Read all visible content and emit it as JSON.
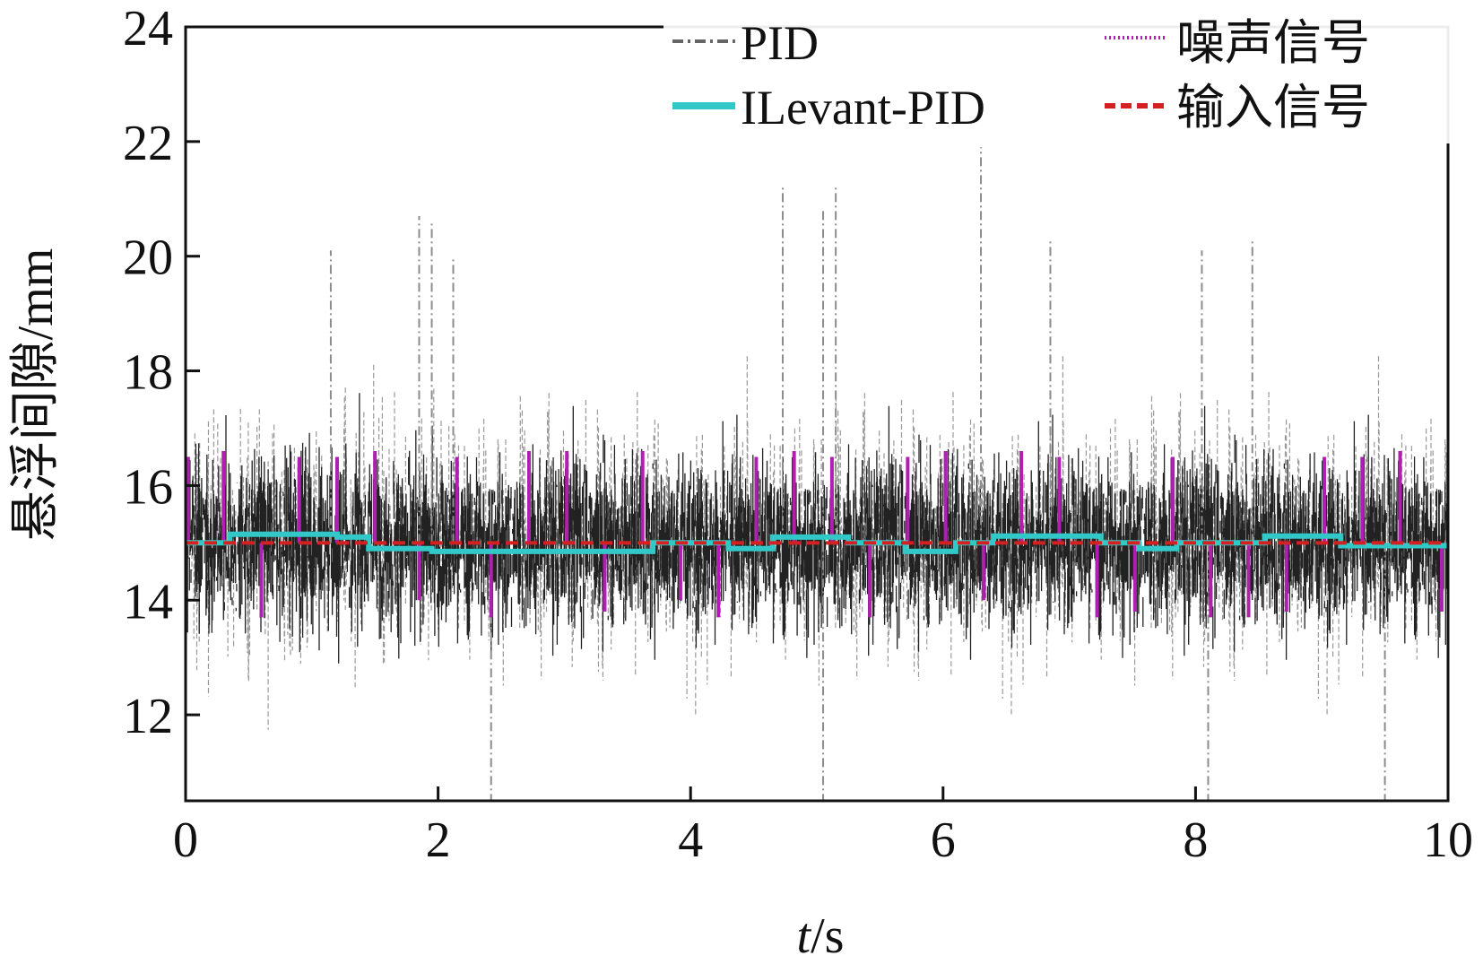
{
  "chart_data": {
    "type": "line",
    "title": "",
    "xlabel_italic": "t",
    "xlabel_unit": "/s",
    "ylabel": "悬浮间隙/mm",
    "xlim": [
      0,
      10
    ],
    "ylim": [
      10.5,
      24
    ],
    "x_ticks": [
      0,
      2,
      4,
      6,
      8,
      10
    ],
    "y_ticks": [
      12,
      14,
      16,
      18,
      20,
      22,
      24
    ],
    "x_tick_labels": [
      "0",
      "2",
      "4",
      "6",
      "8",
      "10"
    ],
    "y_tick_labels": [
      "12",
      "14",
      "16",
      "18",
      "20",
      "22",
      "24"
    ],
    "grid": false,
    "legend_position": "top-right",
    "series": [
      {
        "name": "PID",
        "color": "#222222",
        "line_style": "dash-dot",
        "description_values": {
          "mean": 15.0,
          "typical_min": 13.0,
          "typical_max": 18.0,
          "peak_max": 21.9,
          "peak_min": 10.5
        },
        "spikes": [
          {
            "x": 1.85,
            "y": 20.7
          },
          {
            "x": 1.95,
            "y": 20.6
          },
          {
            "x": 2.12,
            "y": 20.0
          },
          {
            "x": 4.73,
            "y": 21.2
          },
          {
            "x": 5.05,
            "y": 20.8
          },
          {
            "x": 5.15,
            "y": 21.2
          },
          {
            "x": 6.3,
            "y": 21.9
          },
          {
            "x": 6.85,
            "y": 20.3
          },
          {
            "x": 8.45,
            "y": 20.3
          },
          {
            "x": 8.05,
            "y": 20.1
          },
          {
            "x": 1.15,
            "y": 20.1
          },
          {
            "x": 2.42,
            "y": 10.5
          },
          {
            "x": 5.05,
            "y": 10.5
          },
          {
            "x": 8.1,
            "y": 10.5
          },
          {
            "x": 9.5,
            "y": 10.5
          }
        ]
      },
      {
        "name": "ILevant-PID",
        "color": "#33c8c8",
        "line_style": "solid",
        "segments": [
          {
            "x0": 0.0,
            "x1": 0.35,
            "y": 15.0
          },
          {
            "x0": 0.35,
            "x1": 1.2,
            "y": 15.15
          },
          {
            "x0": 1.2,
            "x1": 1.45,
            "y": 15.1
          },
          {
            "x0": 1.45,
            "x1": 1.95,
            "y": 14.9
          },
          {
            "x0": 1.95,
            "x1": 2.6,
            "y": 14.85
          },
          {
            "x0": 2.6,
            "x1": 2.75,
            "y": 14.85
          },
          {
            "x0": 2.75,
            "x1": 3.7,
            "y": 14.85
          },
          {
            "x0": 3.7,
            "x1": 4.3,
            "y": 15.0
          },
          {
            "x0": 4.3,
            "x1": 4.65,
            "y": 14.9
          },
          {
            "x0": 4.65,
            "x1": 5.25,
            "y": 15.1
          },
          {
            "x0": 5.25,
            "x1": 5.7,
            "y": 15.0
          },
          {
            "x0": 5.7,
            "x1": 6.1,
            "y": 14.85
          },
          {
            "x0": 6.1,
            "x1": 6.4,
            "y": 15.0
          },
          {
            "x0": 6.4,
            "x1": 7.25,
            "y": 15.12
          },
          {
            "x0": 7.25,
            "x1": 7.55,
            "y": 15.0
          },
          {
            "x0": 7.55,
            "x1": 7.85,
            "y": 14.9
          },
          {
            "x0": 7.85,
            "x1": 8.55,
            "y": 15.0
          },
          {
            "x0": 8.55,
            "x1": 9.15,
            "y": 15.12
          },
          {
            "x0": 9.15,
            "x1": 10.0,
            "y": 14.95
          }
        ]
      },
      {
        "name": "噪声信号",
        "color": "#b020b0",
        "line_style": "dotted",
        "base": 15.0,
        "pulses": [
          {
            "x": 0.02,
            "y": 16.5
          },
          {
            "x": 0.3,
            "y": 16.6
          },
          {
            "x": 0.6,
            "y": 13.7
          },
          {
            "x": 0.9,
            "y": 16.5
          },
          {
            "x": 1.2,
            "y": 16.5
          },
          {
            "x": 1.5,
            "y": 16.6
          },
          {
            "x": 1.85,
            "y": 14.0
          },
          {
            "x": 2.15,
            "y": 16.5
          },
          {
            "x": 2.42,
            "y": 13.7
          },
          {
            "x": 2.72,
            "y": 16.6
          },
          {
            "x": 3.02,
            "y": 16.6
          },
          {
            "x": 3.32,
            "y": 13.8
          },
          {
            "x": 3.62,
            "y": 16.6
          },
          {
            "x": 3.92,
            "y": 14.0
          },
          {
            "x": 4.22,
            "y": 13.7
          },
          {
            "x": 4.52,
            "y": 16.5
          },
          {
            "x": 4.82,
            "y": 16.6
          },
          {
            "x": 5.12,
            "y": 16.5
          },
          {
            "x": 5.42,
            "y": 13.7
          },
          {
            "x": 5.72,
            "y": 16.5
          },
          {
            "x": 6.02,
            "y": 16.6
          },
          {
            "x": 6.32,
            "y": 14.0
          },
          {
            "x": 6.62,
            "y": 16.6
          },
          {
            "x": 6.92,
            "y": 16.5
          },
          {
            "x": 7.22,
            "y": 13.7
          },
          {
            "x": 7.52,
            "y": 13.8
          },
          {
            "x": 7.82,
            "y": 16.5
          },
          {
            "x": 8.12,
            "y": 13.7
          },
          {
            "x": 8.42,
            "y": 13.7
          },
          {
            "x": 8.72,
            "y": 13.8
          },
          {
            "x": 9.02,
            "y": 16.5
          },
          {
            "x": 9.32,
            "y": 16.5
          },
          {
            "x": 9.62,
            "y": 16.6
          },
          {
            "x": 9.95,
            "y": 13.8
          }
        ]
      },
      {
        "name": "输入信号",
        "color": "#d42020",
        "line_style": "dashed",
        "value": 15.0
      }
    ]
  }
}
